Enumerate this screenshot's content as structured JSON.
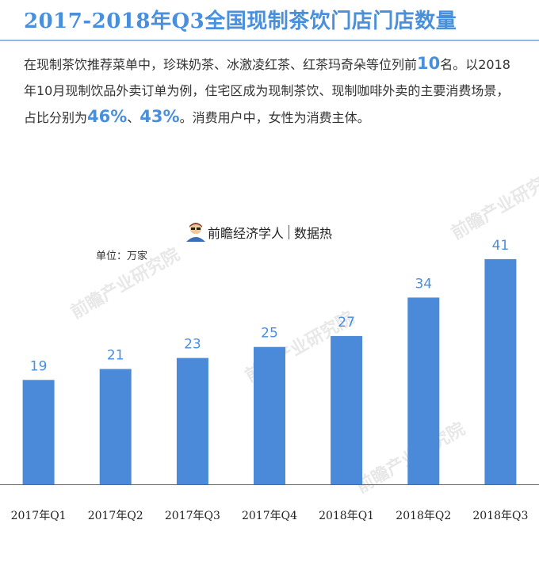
{
  "title": "2017-2018年Q3全国现制茶饮门店门店数量",
  "intro": {
    "p1": "在现制茶饮推荐菜单中，珍珠奶茶、冰激凌红茶、红茶玛奇朵等位列前",
    "h1": "10",
    "p2": "名。以2018年10月现制饮品外卖订单为例，住宅区成为现制茶饮、现制咖啡外卖的主要消费场景，占比分别为",
    "h2": "46%",
    "p3": "、",
    "h3": "43%",
    "p4": "。消费用户中，女性为消费主体。"
  },
  "brand": {
    "name": "前瞻经济学人",
    "tag": "数据热"
  },
  "watermark": "前瞻产业研究院",
  "colors": {
    "accent": "#4a8fdc",
    "bar": "#4a8ad8",
    "label": "#4a8fdc"
  },
  "chart_data": {
    "type": "bar",
    "unit_label": "单位：万家",
    "categories": [
      "2017年Q1",
      "2017年Q2",
      "2017年Q3",
      "2017年Q4",
      "2018年Q1",
      "2018年Q2",
      "2018年Q3"
    ],
    "values": [
      19,
      21,
      23,
      25,
      27,
      34,
      41
    ],
    "ylim": [
      0,
      43
    ],
    "grid": false,
    "data_labels": true
  }
}
